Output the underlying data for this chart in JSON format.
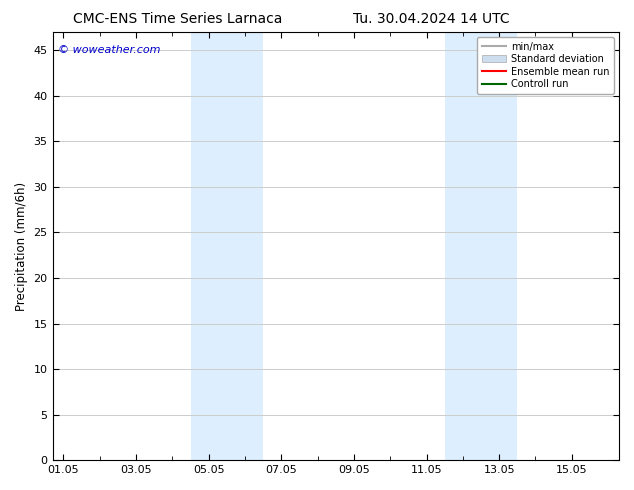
{
  "title_left": "CMC-ENS Time Series Larnaca",
  "title_right": "Tu. 30.04.2024 14 UTC",
  "ylabel": "Precipitation (mm/6h)",
  "ylim": [
    0,
    47
  ],
  "yticks": [
    0,
    5,
    10,
    15,
    20,
    25,
    30,
    35,
    40,
    45
  ],
  "xtick_labels": [
    "01.05",
    "03.05",
    "05.05",
    "07.05",
    "09.05",
    "11.05",
    "13.05",
    "15.05"
  ],
  "xtick_positions": [
    0,
    2,
    4,
    6,
    8,
    10,
    12,
    14
  ],
  "x_min": -0.3,
  "x_max": 15.3,
  "shaded_bands": [
    {
      "x_start": 3.5,
      "x_end": 5.5,
      "color": "#ddeeff"
    },
    {
      "x_start": 10.5,
      "x_end": 12.5,
      "color": "#ddeeff"
    }
  ],
  "watermark": "© woweather.com",
  "watermark_color": "#0000cc",
  "legend_entries": [
    {
      "label": "min/max",
      "color": "#aaaaaa",
      "lw": 1.5
    },
    {
      "label": "Standard deviation",
      "color": "#ccdded",
      "lw": 6
    },
    {
      "label": "Ensemble mean run",
      "color": "#ff0000",
      "lw": 1.5
    },
    {
      "label": "Controll run",
      "color": "#006600",
      "lw": 1.5
    }
  ],
  "background_color": "#ffffff",
  "plot_bg_color": "#ffffff",
  "grid_color": "#cccccc",
  "title_fontsize": 10,
  "label_fontsize": 8.5,
  "tick_fontsize": 8,
  "watermark_fontsize": 8,
  "legend_fontsize": 7
}
